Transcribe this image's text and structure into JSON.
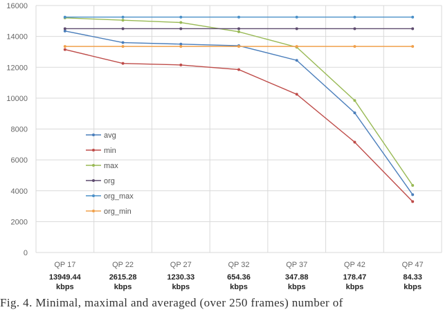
{
  "chart_data": {
    "type": "line",
    "categories": [
      "QP 17",
      "QP 22",
      "QP 27",
      "QP 32",
      "QP 37",
      "QP 42",
      "QP 47"
    ],
    "bitrates": [
      "13949.44",
      "2615.28",
      "1230.33",
      "654.36",
      "347.88",
      "178.47",
      "84.33"
    ],
    "bitrate_unit": "kbps",
    "ylim": [
      0,
      16000
    ],
    "yticks": [
      0,
      2000,
      4000,
      6000,
      8000,
      10000,
      12000,
      14000,
      16000
    ],
    "grid": true,
    "legend_position": "center-left",
    "series": [
      {
        "name": "avg",
        "color": "#4a7ebb",
        "values": [
          14350,
          13600,
          13500,
          13400,
          12450,
          9050,
          3750
        ]
      },
      {
        "name": "min",
        "color": "#be4b48",
        "values": [
          13150,
          12250,
          12150,
          11850,
          10250,
          7150,
          3300
        ]
      },
      {
        "name": "max",
        "color": "#98b954",
        "values": [
          15200,
          15050,
          14900,
          14300,
          13300,
          9850,
          4350
        ]
      },
      {
        "name": "org",
        "color": "#5d4a6e",
        "values": [
          14500,
          14500,
          14500,
          14500,
          14500,
          14500,
          14500
        ]
      },
      {
        "name": "org_max",
        "color": "#4a90c8",
        "values": [
          15250,
          15250,
          15250,
          15250,
          15250,
          15250,
          15250
        ]
      },
      {
        "name": "org_min",
        "color": "#f0a04b",
        "values": [
          13350,
          13350,
          13350,
          13350,
          13350,
          13350,
          13350
        ]
      }
    ]
  },
  "caption": "Fig. 4. Minimal, maximal and averaged (over 250 frames) number of"
}
